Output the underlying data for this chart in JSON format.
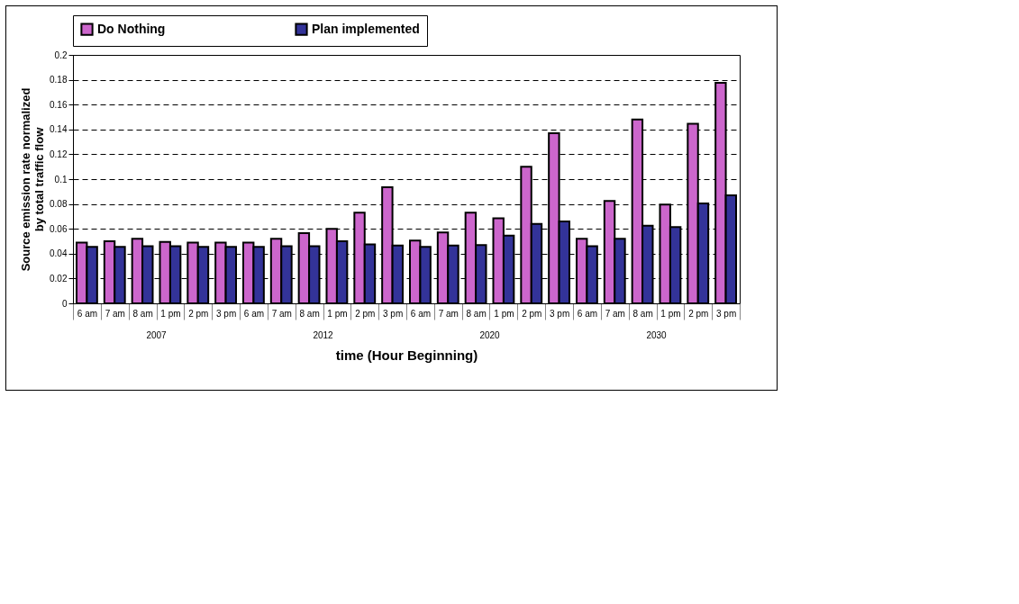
{
  "chart_data": {
    "type": "bar",
    "xlabel": "time (Hour Beginning)",
    "ylabel": "Source emission rate normalized by total traffic flow",
    "categories": [
      "6 am",
      "7 am",
      "8 am",
      "1 pm",
      "2 pm",
      "3 pm",
      "6 am",
      "7 am",
      "8 am",
      "1 pm",
      "2 pm",
      "3 pm",
      "6 am",
      "7 am",
      "8 am",
      "1 pm",
      "2 pm",
      "3 pm",
      "6 am",
      "7 am",
      "8 am",
      "1 pm",
      "2 pm",
      "3 pm"
    ],
    "series": [
      {
        "name": "Do Nothing",
        "color": "#cc66cc",
        "values": [
          0.049,
          0.05,
          0.052,
          0.0495,
          0.049,
          0.049,
          0.049,
          0.052,
          0.0565,
          0.06,
          0.073,
          0.0935,
          0.0505,
          0.057,
          0.073,
          0.0685,
          0.11,
          0.137,
          0.052,
          0.0825,
          0.148,
          0.0795,
          0.1445,
          0.1775
        ]
      },
      {
        "name": "Plan implemented",
        "color": "#333399",
        "values": [
          0.0455,
          0.0455,
          0.046,
          0.046,
          0.0455,
          0.0455,
          0.0455,
          0.046,
          0.046,
          0.05,
          0.0475,
          0.0465,
          0.0455,
          0.0465,
          0.047,
          0.0545,
          0.064,
          0.066,
          0.046,
          0.052,
          0.0625,
          0.0615,
          0.0805,
          0.087
        ]
      }
    ],
    "annotations": [
      "2007",
      "2012",
      "2020",
      "2030"
    ],
    "ylim": [
      0,
      0.2
    ],
    "yticks": [
      0,
      0.02,
      0.04,
      0.06,
      0.08,
      0.1,
      0.12,
      0.14,
      0.16,
      0.18,
      0.2
    ],
    "grid": "y",
    "legend": "top"
  }
}
